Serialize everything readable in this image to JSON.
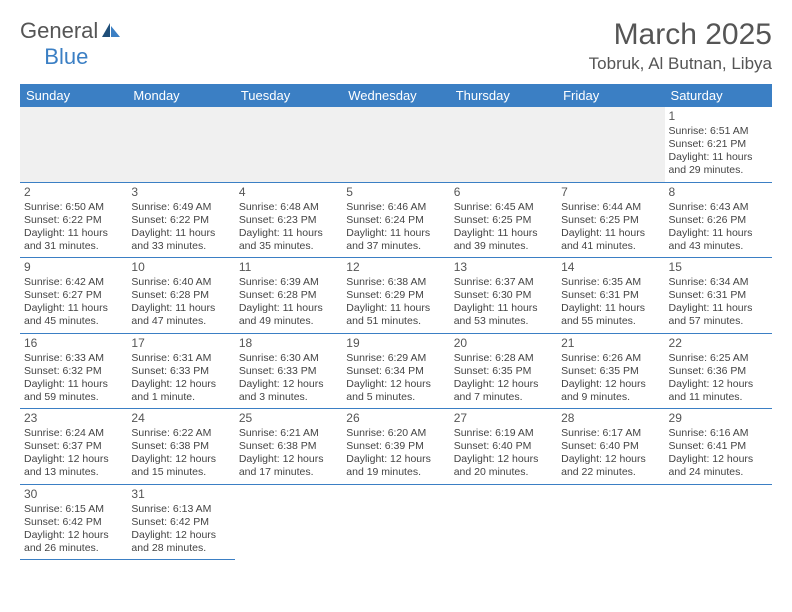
{
  "logo": {
    "text1": "General",
    "text2": "Blue"
  },
  "title": "March 2025",
  "location": "Tobruk, Al Butnan, Libya",
  "day_headers": [
    "Sunday",
    "Monday",
    "Tuesday",
    "Wednesday",
    "Thursday",
    "Friday",
    "Saturday"
  ],
  "colors": {
    "header_bg": "#3b7fc4",
    "header_text": "#ffffff",
    "border": "#3b7fc4",
    "empty_bg": "#f0f0f0",
    "text": "#444444"
  },
  "weeks": [
    [
      null,
      null,
      null,
      null,
      null,
      null,
      {
        "n": "1",
        "sr": "Sunrise: 6:51 AM",
        "ss": "Sunset: 6:21 PM",
        "dl1": "Daylight: 11 hours",
        "dl2": "and 29 minutes."
      }
    ],
    [
      {
        "n": "2",
        "sr": "Sunrise: 6:50 AM",
        "ss": "Sunset: 6:22 PM",
        "dl1": "Daylight: 11 hours",
        "dl2": "and 31 minutes."
      },
      {
        "n": "3",
        "sr": "Sunrise: 6:49 AM",
        "ss": "Sunset: 6:22 PM",
        "dl1": "Daylight: 11 hours",
        "dl2": "and 33 minutes."
      },
      {
        "n": "4",
        "sr": "Sunrise: 6:48 AM",
        "ss": "Sunset: 6:23 PM",
        "dl1": "Daylight: 11 hours",
        "dl2": "and 35 minutes."
      },
      {
        "n": "5",
        "sr": "Sunrise: 6:46 AM",
        "ss": "Sunset: 6:24 PM",
        "dl1": "Daylight: 11 hours",
        "dl2": "and 37 minutes."
      },
      {
        "n": "6",
        "sr": "Sunrise: 6:45 AM",
        "ss": "Sunset: 6:25 PM",
        "dl1": "Daylight: 11 hours",
        "dl2": "and 39 minutes."
      },
      {
        "n": "7",
        "sr": "Sunrise: 6:44 AM",
        "ss": "Sunset: 6:25 PM",
        "dl1": "Daylight: 11 hours",
        "dl2": "and 41 minutes."
      },
      {
        "n": "8",
        "sr": "Sunrise: 6:43 AM",
        "ss": "Sunset: 6:26 PM",
        "dl1": "Daylight: 11 hours",
        "dl2": "and 43 minutes."
      }
    ],
    [
      {
        "n": "9",
        "sr": "Sunrise: 6:42 AM",
        "ss": "Sunset: 6:27 PM",
        "dl1": "Daylight: 11 hours",
        "dl2": "and 45 minutes."
      },
      {
        "n": "10",
        "sr": "Sunrise: 6:40 AM",
        "ss": "Sunset: 6:28 PM",
        "dl1": "Daylight: 11 hours",
        "dl2": "and 47 minutes."
      },
      {
        "n": "11",
        "sr": "Sunrise: 6:39 AM",
        "ss": "Sunset: 6:28 PM",
        "dl1": "Daylight: 11 hours",
        "dl2": "and 49 minutes."
      },
      {
        "n": "12",
        "sr": "Sunrise: 6:38 AM",
        "ss": "Sunset: 6:29 PM",
        "dl1": "Daylight: 11 hours",
        "dl2": "and 51 minutes."
      },
      {
        "n": "13",
        "sr": "Sunrise: 6:37 AM",
        "ss": "Sunset: 6:30 PM",
        "dl1": "Daylight: 11 hours",
        "dl2": "and 53 minutes."
      },
      {
        "n": "14",
        "sr": "Sunrise: 6:35 AM",
        "ss": "Sunset: 6:31 PM",
        "dl1": "Daylight: 11 hours",
        "dl2": "and 55 minutes."
      },
      {
        "n": "15",
        "sr": "Sunrise: 6:34 AM",
        "ss": "Sunset: 6:31 PM",
        "dl1": "Daylight: 11 hours",
        "dl2": "and 57 minutes."
      }
    ],
    [
      {
        "n": "16",
        "sr": "Sunrise: 6:33 AM",
        "ss": "Sunset: 6:32 PM",
        "dl1": "Daylight: 11 hours",
        "dl2": "and 59 minutes."
      },
      {
        "n": "17",
        "sr": "Sunrise: 6:31 AM",
        "ss": "Sunset: 6:33 PM",
        "dl1": "Daylight: 12 hours",
        "dl2": "and 1 minute."
      },
      {
        "n": "18",
        "sr": "Sunrise: 6:30 AM",
        "ss": "Sunset: 6:33 PM",
        "dl1": "Daylight: 12 hours",
        "dl2": "and 3 minutes."
      },
      {
        "n": "19",
        "sr": "Sunrise: 6:29 AM",
        "ss": "Sunset: 6:34 PM",
        "dl1": "Daylight: 12 hours",
        "dl2": "and 5 minutes."
      },
      {
        "n": "20",
        "sr": "Sunrise: 6:28 AM",
        "ss": "Sunset: 6:35 PM",
        "dl1": "Daylight: 12 hours",
        "dl2": "and 7 minutes."
      },
      {
        "n": "21",
        "sr": "Sunrise: 6:26 AM",
        "ss": "Sunset: 6:35 PM",
        "dl1": "Daylight: 12 hours",
        "dl2": "and 9 minutes."
      },
      {
        "n": "22",
        "sr": "Sunrise: 6:25 AM",
        "ss": "Sunset: 6:36 PM",
        "dl1": "Daylight: 12 hours",
        "dl2": "and 11 minutes."
      }
    ],
    [
      {
        "n": "23",
        "sr": "Sunrise: 6:24 AM",
        "ss": "Sunset: 6:37 PM",
        "dl1": "Daylight: 12 hours",
        "dl2": "and 13 minutes."
      },
      {
        "n": "24",
        "sr": "Sunrise: 6:22 AM",
        "ss": "Sunset: 6:38 PM",
        "dl1": "Daylight: 12 hours",
        "dl2": "and 15 minutes."
      },
      {
        "n": "25",
        "sr": "Sunrise: 6:21 AM",
        "ss": "Sunset: 6:38 PM",
        "dl1": "Daylight: 12 hours",
        "dl2": "and 17 minutes."
      },
      {
        "n": "26",
        "sr": "Sunrise: 6:20 AM",
        "ss": "Sunset: 6:39 PM",
        "dl1": "Daylight: 12 hours",
        "dl2": "and 19 minutes."
      },
      {
        "n": "27",
        "sr": "Sunrise: 6:19 AM",
        "ss": "Sunset: 6:40 PM",
        "dl1": "Daylight: 12 hours",
        "dl2": "and 20 minutes."
      },
      {
        "n": "28",
        "sr": "Sunrise: 6:17 AM",
        "ss": "Sunset: 6:40 PM",
        "dl1": "Daylight: 12 hours",
        "dl2": "and 22 minutes."
      },
      {
        "n": "29",
        "sr": "Sunrise: 6:16 AM",
        "ss": "Sunset: 6:41 PM",
        "dl1": "Daylight: 12 hours",
        "dl2": "and 24 minutes."
      }
    ],
    [
      {
        "n": "30",
        "sr": "Sunrise: 6:15 AM",
        "ss": "Sunset: 6:42 PM",
        "dl1": "Daylight: 12 hours",
        "dl2": "and 26 minutes."
      },
      {
        "n": "31",
        "sr": "Sunrise: 6:13 AM",
        "ss": "Sunset: 6:42 PM",
        "dl1": "Daylight: 12 hours",
        "dl2": "and 28 minutes."
      },
      null,
      null,
      null,
      null,
      null
    ]
  ]
}
